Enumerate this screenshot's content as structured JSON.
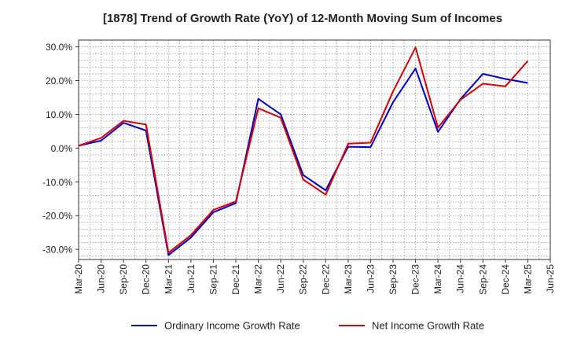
{
  "chart_data": {
    "type": "line",
    "title": "[1878]  Trend of Growth Rate (YoY) of 12-Month Moving Sum of Incomes",
    "xlabel": "",
    "ylabel": "",
    "ylim": [
      -33,
      32
    ],
    "y_ticks": [
      30,
      20,
      10,
      0,
      -10,
      -20,
      -30
    ],
    "y_tick_labels": [
      "30.0%",
      "20.0%",
      "10.0%",
      "0.0%",
      "-10.0%",
      "-20.0%",
      "-30.0%"
    ],
    "x_tick_labels": [
      "Mar-20",
      "Jun-20",
      "Sep-20",
      "Dec-20",
      "Mar-21",
      "Jun-21",
      "Sep-21",
      "Dec-21",
      "Mar-22",
      "Jun-22",
      "Sep-22",
      "Dec-22",
      "Mar-23",
      "Jun-23",
      "Sep-23",
      "Dec-23",
      "Mar-24",
      "Jun-24",
      "Sep-24",
      "Dec-24",
      "Mar-25",
      "Jun-25"
    ],
    "grid": true,
    "legend_position": "bottom",
    "series": [
      {
        "name": "Ordinary Income Growth Rate",
        "color": "#0000cc",
        "values": [
          0.7,
          2.2,
          7.5,
          5.2,
          -31.7,
          -26.5,
          -19,
          -16.3,
          14.6,
          10,
          -8,
          -12.5,
          0.4,
          0.3,
          13.6,
          23.6,
          4.8,
          14.5,
          22,
          20.5,
          19.3
        ]
      },
      {
        "name": "Net Income Growth Rate",
        "color": "#dd0000",
        "values": [
          0.7,
          3,
          8.1,
          7,
          -31,
          -25.8,
          -18.3,
          -15.8,
          11.8,
          9,
          -9.3,
          -13.8,
          1.3,
          1.6,
          16.8,
          29.8,
          6.1,
          14.3,
          19.1,
          18.3,
          25.8
        ]
      }
    ]
  }
}
